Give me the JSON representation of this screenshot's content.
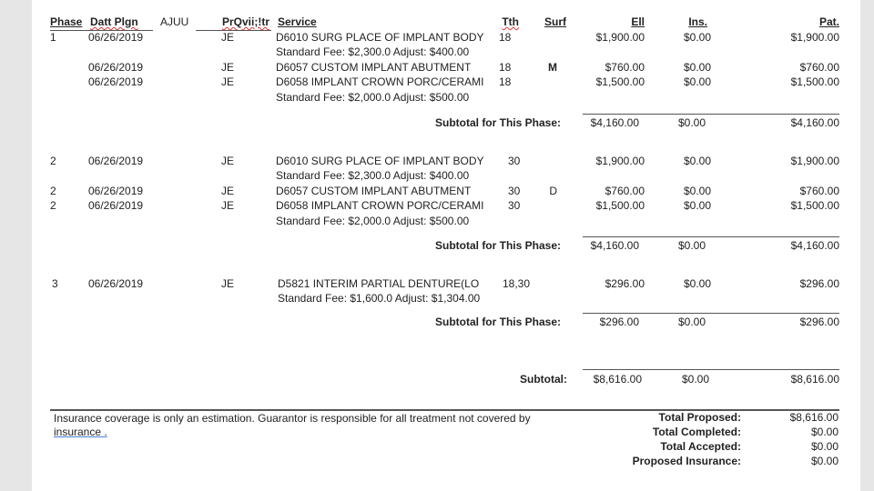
{
  "header": {
    "phase": "Phase",
    "date": "Datt Plgn",
    "status": "AJUU",
    "provider": "PrQvii;!tr",
    "service": "Service",
    "tooth": "Tth",
    "surface": "Surf",
    "fee": "Ell",
    "insurance": "Ins.",
    "patient": "Pat."
  },
  "phases": [
    {
      "rows": [
        {
          "phase": "1",
          "date": "06/26/2019",
          "provider": "JE",
          "service": "D6010 SURG PLACE OF IMPLANT BODY",
          "tooth": "18",
          "surface": "",
          "fee": "$1,900.00",
          "ins": "$0.00",
          "pat": "$1,900.00",
          "note": "Standard Fee: $2,300.0 Adjust: $400.00"
        },
        {
          "phase": "",
          "date": "06/26/2019",
          "provider": "JE",
          "service": "D6057 CUSTOM IMPLANT ABUTMENT",
          "tooth": "18",
          "surface": "M",
          "fee": "$760.00",
          "ins": "$0.00",
          "pat": "$760.00",
          "note": ""
        },
        {
          "phase": "",
          "date": "06/26/2019",
          "provider": "JE",
          "service": "D6058 IMPLANT CROWN PORC/CERAMI",
          "tooth": "18",
          "surface": "",
          "fee": "$1,500.00",
          "ins": "$0.00",
          "pat": "$1,500.00",
          "note": "Standard Fee: $2,000.0 Adjust: $500.00"
        }
      ],
      "subtotal_label": "Subtotal for This Phase:",
      "subtotal": {
        "fee": "$4,160.00",
        "ins": "$0.00",
        "pat": "$4,160.00"
      }
    },
    {
      "rows": [
        {
          "phase": "2",
          "date": "06/26/2019",
          "provider": "JE",
          "service": "D6010 SURG PLACE OF IMPLANT BODY",
          "tooth": "30",
          "surface": "",
          "fee": "$1,900.00",
          "ins": "$0.00",
          "pat": "$1,900.00",
          "note": "Standard Fee: $2,300.0 Adjust: $400.00"
        },
        {
          "phase": "2",
          "date": "06/26/2019",
          "provider": "JE",
          "service": "D6057 CUSTOM IMPLANT ABUTMENT",
          "tooth": "30",
          "surface": "D",
          "fee": "$760.00",
          "ins": "$0.00",
          "pat": "$760.00",
          "note": ""
        },
        {
          "phase": "2",
          "date": "06/26/2019",
          "provider": "JE",
          "service": "D6058 IMPLANT CROWN PORC/CERAMI",
          "tooth": "30",
          "surface": "",
          "fee": "$1,500.00",
          "ins": "$0.00",
          "pat": "$1,500.00",
          "note": "Standard Fee: $2,000.0 Adjust: $500.00"
        }
      ],
      "subtotal_label": "Subtotal for This Phase:",
      "subtotal": {
        "fee": "$4,160.00",
        "ins": "$0.00",
        "pat": "$4,160.00"
      }
    },
    {
      "rows": [
        {
          "phase": "3",
          "date": "06/26/2019",
          "provider": "JE",
          "service": "D5821 INTERIM PARTIAL DENTURE(LO",
          "tooth": "18,30",
          "surface": "",
          "fee": "$296.00",
          "ins": "$0.00",
          "pat": "$296.00",
          "note": "Standard Fee: $1,600.0 Adjust: $1,304.00"
        }
      ],
      "subtotal_label": "Subtotal for This Phase:",
      "subtotal": {
        "fee": "$296.00",
        "ins": "$0.00",
        "pat": "$296.00"
      }
    }
  ],
  "grand": {
    "label": "Subtotal:",
    "fee": "$8,616.00",
    "ins": "$0.00",
    "pat": "$8,616.00"
  },
  "footer": {
    "disclaimer": "Insurance coverage is only an estimation. Guarantor is responsible for all treatment not covered by",
    "disclaimer2": "insurance .",
    "totals": [
      {
        "label": "Total Proposed:",
        "value": "$8,616.00"
      },
      {
        "label": "Total Completed:",
        "value": "$0.00"
      },
      {
        "label": "Total Accepted:",
        "value": "$0.00"
      },
      {
        "label": "Proposed Insurance:",
        "value": "$0.00"
      }
    ]
  }
}
